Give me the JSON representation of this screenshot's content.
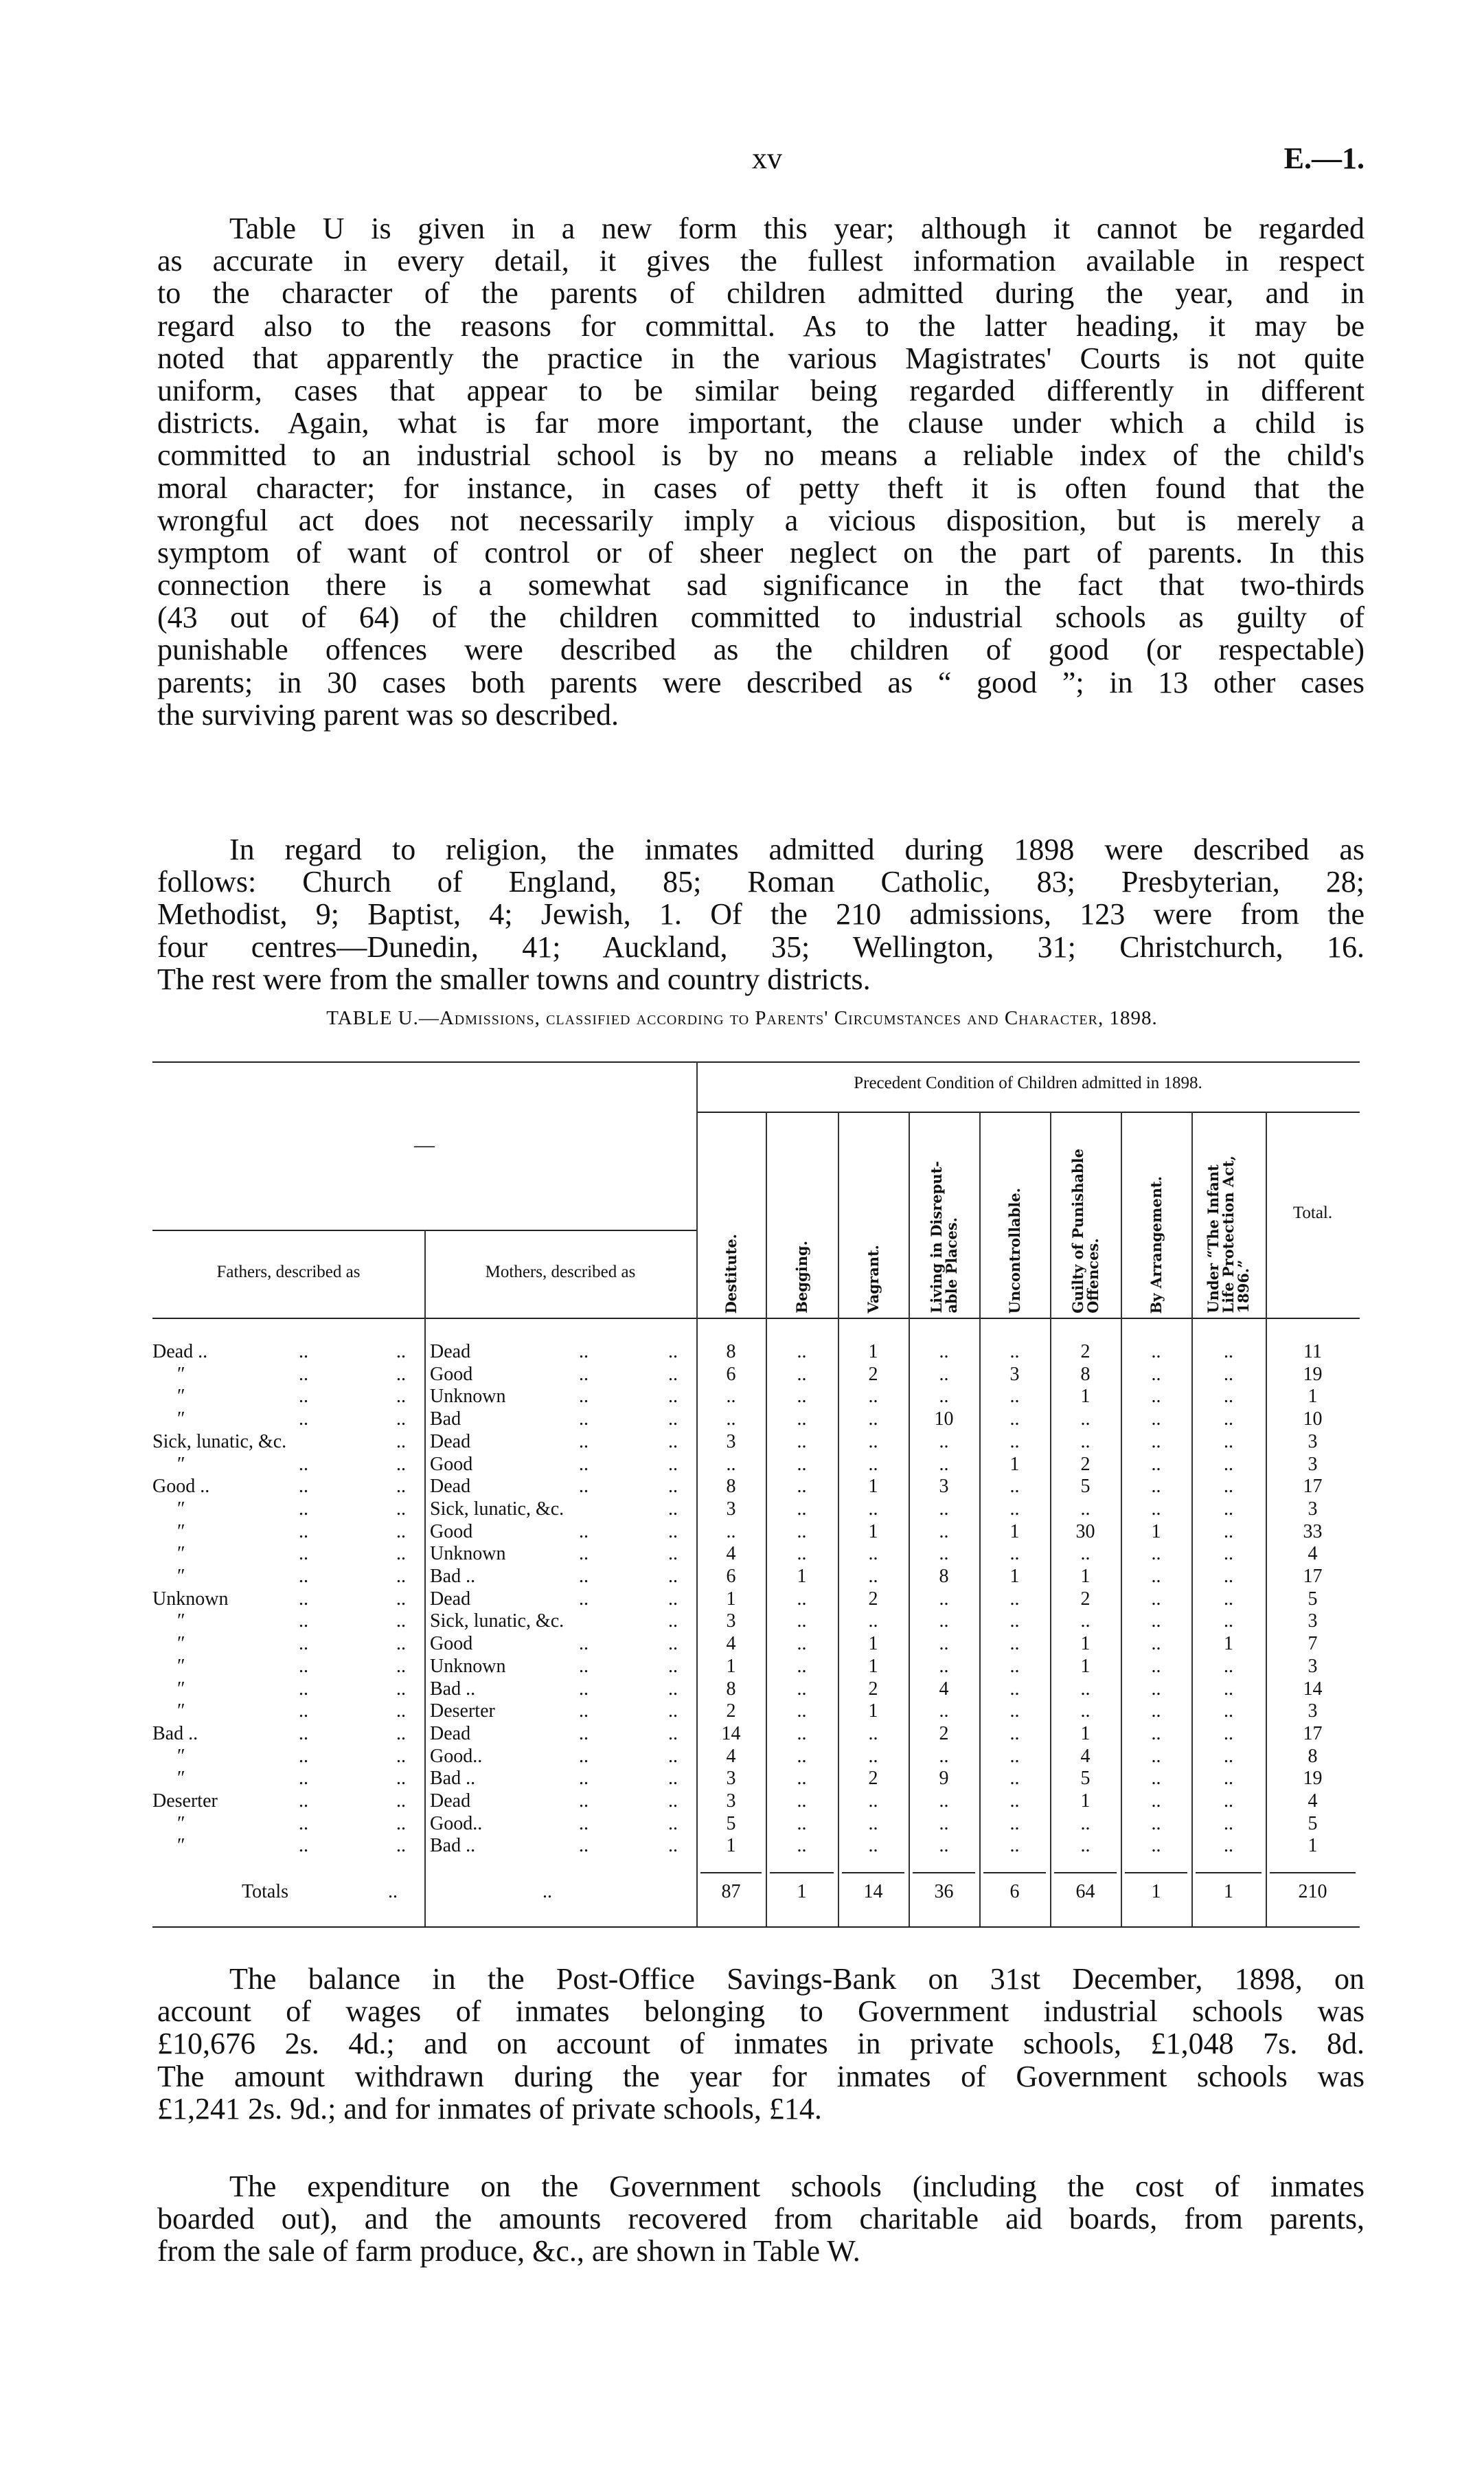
{
  "page_header": {
    "page_number": "xv",
    "reference": "E.—1."
  },
  "paragraphs": [
    {
      "lines": [
        "Table U is given in a new form this year; although it cannot be regarded",
        "as accurate in every detail, it gives the fullest information available in respect",
        "to the character of the parents of children admitted during the year, and in",
        "regard also to the reasons for committal.  As to the latter heading, it may be",
        "noted that apparently the practice in the various Magistrates' Courts is not quite",
        "uniform, cases that appear to be similar being regarded differently in different",
        "districts.  Again, what is far more important, the clause under which a child is",
        "committed to an industrial school is by no means a reliable index of the child's",
        "moral character; for instance, in cases of petty theft it is often found that the",
        "wrongful act does not necessarily imply a vicious disposition, but is merely a",
        "symptom of want of control or of sheer neglect on the part of parents.  In this",
        "connection there is a somewhat sad significance in the fact that two-thirds",
        "(43 out of 64) of the children committed to industrial schools as guilty of",
        "punishable offences were described as the children of good (or respectable)",
        "parents; in 30 cases both parents were described as “ good ”; in 13 other cases",
        "the surviving parent was so described."
      ]
    },
    {
      "lines": [
        "In regard to religion, the inmates admitted during 1898 were described as",
        "follows:  Church of England, 85;  Roman Catholic, 83;  Presbyterian, 28;",
        "Methodist, 9; Baptist, 4; Jewish, 1.  Of the 210 admissions, 123 were from the",
        "four centres—Dunedin, 41;  Auckland, 35;  Wellington, 31;  Christchurch, 16.",
        "The rest were from the smaller towns and country districts."
      ]
    },
    {
      "lines": [
        "The balance in the Post-Office Savings-Bank on 31st December, 1898, on",
        "account of wages of inmates belonging to Government industrial schools was",
        "£10,676 2s. 4d.; and on account of inmates in private schools, £1,048 7s. 8d.",
        "The amount withdrawn during the year for inmates of Government schools was",
        "£1,241 2s. 9d.; and for inmates of private schools, £14."
      ]
    },
    {
      "lines": [
        "The expenditure on the Government schools (including the cost of inmates",
        "boarded out), and the amounts recovered from charitable aid boards, from parents,",
        "from the sale of farm produce, &c., are shown in Table W."
      ]
    }
  ],
  "table": {
    "caption": "TABLE U.—Admissions, classified according to Parents' Circumstances and Character, 1898.",
    "group_header": "Precedent Condition of Children admitted in 1898.",
    "blank_header": "—",
    "fathers_header": "Fathers, described as",
    "mothers_header": "Mothers, described as",
    "columns": [
      "Destitute.",
      "Begging.",
      "Vagrant.",
      "Living in Disreput-\nable Places.",
      "Uncontrollable.",
      "Guilty of Punishable\nOffences.",
      "By Arrangement.",
      "Under “The Infant\nLife Protection Act,\n1896.”"
    ],
    "total_header": "Total.",
    "leader": "..",
    "rows": [
      {
        "father": "Dead ..",
        "mother": "Dead",
        "values": [
          "8",
          "..",
          "1",
          "..",
          "..",
          "2",
          "..",
          ".."
        ],
        "total": "11"
      },
      {
        "father": "″",
        "mother": "Good",
        "values": [
          "6",
          "..",
          "2",
          "..",
          "3",
          "8",
          "..",
          ".."
        ],
        "total": "19"
      },
      {
        "father": "″",
        "mother": "Unknown",
        "values": [
          "..",
          "..",
          "..",
          "..",
          "..",
          "1",
          "..",
          ".."
        ],
        "total": "1"
      },
      {
        "father": "″",
        "mother": "Bad",
        "values": [
          "..",
          "..",
          "..",
          "10",
          "..",
          "..",
          "..",
          ".."
        ],
        "total": "10"
      },
      {
        "father": "Sick, lunatic, &c.",
        "mother": "Dead",
        "values": [
          "3",
          "..",
          "..",
          "..",
          "..",
          "..",
          "..",
          ".."
        ],
        "total": "3"
      },
      {
        "father": "″",
        "mother": "Good",
        "values": [
          "..",
          "..",
          "..",
          "..",
          "1",
          "2",
          "..",
          ".."
        ],
        "total": "3"
      },
      {
        "father": "Good ..",
        "mother": "Dead",
        "values": [
          "8",
          "..",
          "1",
          "3",
          "..",
          "5",
          "..",
          ".."
        ],
        "total": "17"
      },
      {
        "father": "″",
        "mother": "Sick, lunatic, &c.",
        "values": [
          "3",
          "..",
          "..",
          "..",
          "..",
          "..",
          "..",
          ".."
        ],
        "total": "3"
      },
      {
        "father": "″",
        "mother": "Good",
        "values": [
          "..",
          "..",
          "1",
          "..",
          "1",
          "30",
          "1",
          ".."
        ],
        "total": "33"
      },
      {
        "father": "″",
        "mother": "Unknown",
        "values": [
          "4",
          "..",
          "..",
          "..",
          "..",
          "..",
          "..",
          ".."
        ],
        "total": "4"
      },
      {
        "father": "″",
        "mother": "Bad ..",
        "values": [
          "6",
          "1",
          "..",
          "8",
          "1",
          "1",
          "..",
          ".."
        ],
        "total": "17"
      },
      {
        "father": "Unknown",
        "mother": "Dead",
        "values": [
          "1",
          "..",
          "2",
          "..",
          "..",
          "2",
          "..",
          ".."
        ],
        "total": "5"
      },
      {
        "father": "″",
        "mother": "Sick, lunatic, &c.",
        "values": [
          "3",
          "..",
          "..",
          "..",
          "..",
          "..",
          "..",
          ".."
        ],
        "total": "3"
      },
      {
        "father": "″",
        "mother": "Good",
        "values": [
          "4",
          "..",
          "1",
          "..",
          "..",
          "1",
          "..",
          "1"
        ],
        "total": "7"
      },
      {
        "father": "″",
        "mother": "Unknown",
        "values": [
          "1",
          "..",
          "1",
          "..",
          "..",
          "1",
          "..",
          ".."
        ],
        "total": "3"
      },
      {
        "father": "″",
        "mother": "Bad ..",
        "values": [
          "8",
          "..",
          "2",
          "4",
          "..",
          "..",
          "..",
          ".."
        ],
        "total": "14"
      },
      {
        "father": "″",
        "mother": "Deserter",
        "values": [
          "2",
          "..",
          "1",
          "..",
          "..",
          "..",
          "..",
          ".."
        ],
        "total": "3"
      },
      {
        "father": "Bad ..",
        "mother": "Dead",
        "values": [
          "14",
          "..",
          "..",
          "2",
          "..",
          "1",
          "..",
          ".."
        ],
        "total": "17"
      },
      {
        "father": "″",
        "mother": "Good..",
        "values": [
          "4",
          "..",
          "..",
          "..",
          "..",
          "4",
          "..",
          ".."
        ],
        "total": "8"
      },
      {
        "father": "″",
        "mother": "Bad ..",
        "values": [
          "3",
          "..",
          "2",
          "9",
          "..",
          "5",
          "..",
          ".."
        ],
        "total": "19"
      },
      {
        "father": "Deserter",
        "mother": "Dead",
        "values": [
          "3",
          "..",
          "..",
          "..",
          "..",
          "1",
          "..",
          ".."
        ],
        "total": "4"
      },
      {
        "father": "″",
        "mother": "Good..",
        "values": [
          "5",
          "..",
          "..",
          "..",
          "..",
          "..",
          "..",
          ".."
        ],
        "total": "5"
      },
      {
        "father": "″",
        "mother": "Bad ..",
        "values": [
          "1",
          "..",
          "..",
          "..",
          "..",
          "..",
          "..",
          ".."
        ],
        "total": "1"
      }
    ],
    "totals": {
      "label": "Totals",
      "values": [
        "87",
        "1",
        "14",
        "36",
        "6",
        "64",
        "1",
        "1"
      ],
      "total": "210"
    }
  }
}
